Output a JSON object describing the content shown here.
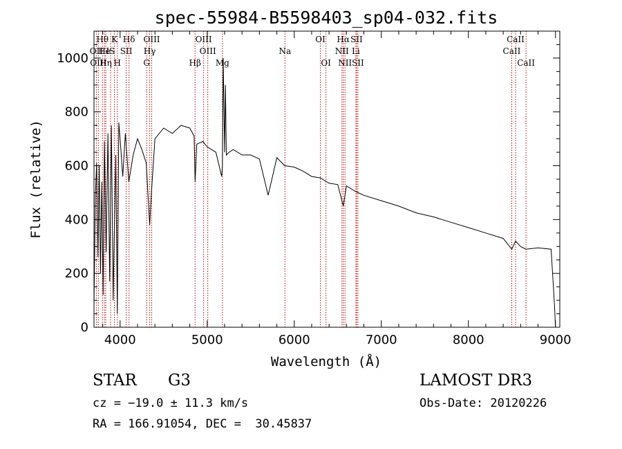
{
  "chart_data": {
    "type": "line",
    "title": "spec-55984-B5598403_sp04-032.fits",
    "xlabel": "Wavelength (Å)",
    "ylabel": "Flux (relative)",
    "xlim": [
      3700,
      9050
    ],
    "ylim": [
      0,
      1100
    ],
    "xticks": [
      4000,
      5000,
      6000,
      7000,
      8000,
      9000
    ],
    "yticks": [
      0,
      200,
      400,
      600,
      800,
      1000
    ],
    "series": [
      {
        "name": "flux",
        "x": [
          3700,
          3715,
          3730,
          3745,
          3760,
          3775,
          3790,
          3805,
          3820,
          3840,
          3860,
          3880,
          3900,
          3920,
          3935,
          3950,
          3968,
          3985,
          4000,
          4030,
          4060,
          4100,
          4150,
          4200,
          4250,
          4300,
          4340,
          4360,
          4400,
          4500,
          4600,
          4700,
          4800,
          4850,
          4861,
          4880,
          4950,
          5000,
          5100,
          5167,
          5175,
          5184,
          5200,
          5210,
          5220,
          5250,
          5300,
          5400,
          5500,
          5600,
          5700,
          5800,
          5890,
          6000,
          6100,
          6200,
          6300,
          6400,
          6500,
          6563,
          6600,
          6700,
          6800,
          7000,
          7200,
          7400,
          7600,
          7800,
          8000,
          8200,
          8400,
          8498,
          8542,
          8600,
          8662,
          8800,
          8950,
          8990,
          9000
        ],
        "values": [
          80,
          480,
          610,
          260,
          600,
          200,
          540,
          120,
          690,
          280,
          720,
          170,
          750,
          100,
          380,
          640,
          50,
          760,
          700,
          560,
          720,
          540,
          640,
          700,
          660,
          610,
          380,
          500,
          700,
          740,
          720,
          750,
          740,
          710,
          540,
          680,
          690,
          670,
          650,
          560,
          600,
          1000,
          650,
          900,
          640,
          650,
          660,
          640,
          640,
          625,
          490,
          630,
          600,
          595,
          580,
          560,
          555,
          535,
          530,
          450,
          525,
          505,
          490,
          470,
          450,
          425,
          410,
          390,
          370,
          350,
          330,
          290,
          320,
          300,
          290,
          295,
          290,
          80,
          0
        ]
      }
    ],
    "lines": [
      {
        "name": "Hθ",
        "wave": 3797,
        "row": 1
      },
      {
        "name": "OII",
        "wave": 3727,
        "row": 2
      },
      {
        "name": "OIII",
        "wave": 3750,
        "row": 3
      },
      {
        "name": "He",
        "wave": 3820,
        "row": 2
      },
      {
        "name": "Hη",
        "wave": 3835,
        "row": 3
      },
      {
        "name": "K",
        "wave": 3934,
        "row": 1
      },
      {
        "name": "IS",
        "wave": 3890,
        "row": 2
      },
      {
        "name": "H",
        "wave": 3968,
        "row": 3
      },
      {
        "name": "SII",
        "wave": 4070,
        "row": 2
      },
      {
        "name": "Hδ",
        "wave": 4102,
        "row": 1
      },
      {
        "name": "OIII",
        "wave": 4363,
        "row": 1
      },
      {
        "name": "Hγ",
        "wave": 4340,
        "row": 2
      },
      {
        "name": "G",
        "wave": 4305,
        "row": 3
      },
      {
        "name": "OIII",
        "wave": 4959,
        "row": 1
      },
      {
        "name": "OIII",
        "wave": 5007,
        "row": 2
      },
      {
        "name": "Hβ",
        "wave": 4861,
        "row": 3
      },
      {
        "name": "Mg",
        "wave": 5175,
        "row": 3
      },
      {
        "name": "Na",
        "wave": 5893,
        "row": 2
      },
      {
        "name": "OI",
        "wave": 6300,
        "row": 1
      },
      {
        "name": "OI",
        "wave": 6364,
        "row": 3
      },
      {
        "name": "Hα",
        "wave": 6563,
        "row": 1
      },
      {
        "name": "SII",
        "wave": 6716,
        "row": 1
      },
      {
        "name": "NII",
        "wave": 6548,
        "row": 2
      },
      {
        "name": "Li",
        "wave": 6708,
        "row": 2
      },
      {
        "name": "NII",
        "wave": 6583,
        "row": 3
      },
      {
        "name": "SII",
        "wave": 6731,
        "row": 3
      },
      {
        "name": "CaII",
        "wave": 8542,
        "row": 1
      },
      {
        "name": "CaII",
        "wave": 8498,
        "row": 2
      },
      {
        "name": "CaII",
        "wave": 8662,
        "row": 3
      }
    ]
  },
  "info": {
    "class": "STAR",
    "subclass": "G3",
    "survey": "LAMOST DR3",
    "cz": "cz = −19.0 ± 11.3 km/s",
    "obs_date": "Obs-Date: 20120226",
    "radec": "RA = 166.91054, DEC =  30.45837"
  }
}
